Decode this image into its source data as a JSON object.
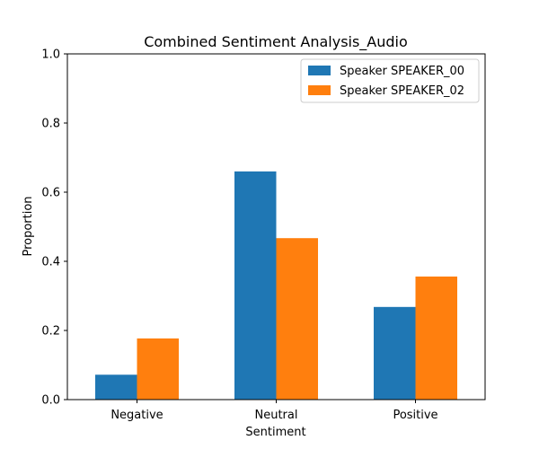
{
  "chart_data": {
    "type": "bar",
    "title": "Combined Sentiment Analysis_Audio",
    "xlabel": "Sentiment",
    "ylabel": "Proportion",
    "categories": [
      "Negative",
      "Neutral",
      "Positive"
    ],
    "series": [
      {
        "name": "Speaker SPEAKER_00",
        "color": "#1f77b4",
        "values": [
          0.072,
          0.66,
          0.268
        ]
      },
      {
        "name": "Speaker SPEAKER_02",
        "color": "#ff7f0e",
        "values": [
          0.177,
          0.467,
          0.356
        ]
      }
    ],
    "ylim": [
      0.0,
      1.0
    ],
    "yticks": [
      0.0,
      0.2,
      0.4,
      0.6,
      0.8,
      1.0
    ],
    "ytick_labels": [
      "0.0",
      "0.2",
      "0.4",
      "0.6",
      "0.8",
      "1.0"
    ],
    "grid": false,
    "legend_position": "top-right"
  }
}
